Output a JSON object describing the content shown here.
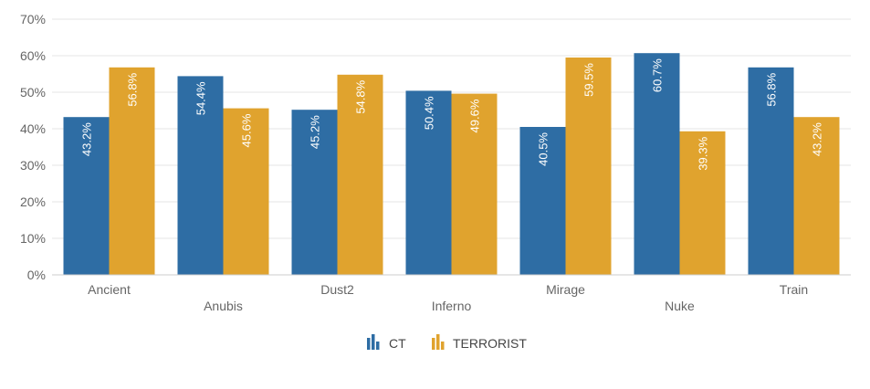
{
  "chart_data": {
    "type": "bar",
    "categories": [
      "Ancient",
      "Anubis",
      "Dust2",
      "Inferno",
      "Mirage",
      "Nuke",
      "Train"
    ],
    "series": [
      {
        "name": "CT",
        "color": "#2e6da4",
        "values": [
          43.2,
          54.4,
          45.2,
          50.4,
          40.5,
          60.7,
          56.8
        ],
        "labels": [
          "43.2%",
          "54.4%",
          "45.2%",
          "50.4%",
          "40.5%",
          "60.7%",
          "56.8%"
        ]
      },
      {
        "name": "TERRORIST",
        "color": "#e0a32e",
        "values": [
          56.8,
          45.6,
          54.8,
          49.6,
          59.5,
          39.3,
          43.2
        ],
        "labels": [
          "56.8%",
          "45.6%",
          "54.8%",
          "49.6%",
          "59.5%",
          "39.3%",
          "43.2%"
        ]
      }
    ],
    "ylim": [
      0,
      70
    ],
    "yticks": [
      "0%",
      "10%",
      "20%",
      "30%",
      "40%",
      "50%",
      "60%",
      "70%"
    ],
    "legend_position": "bottom-center",
    "grid": true
  }
}
